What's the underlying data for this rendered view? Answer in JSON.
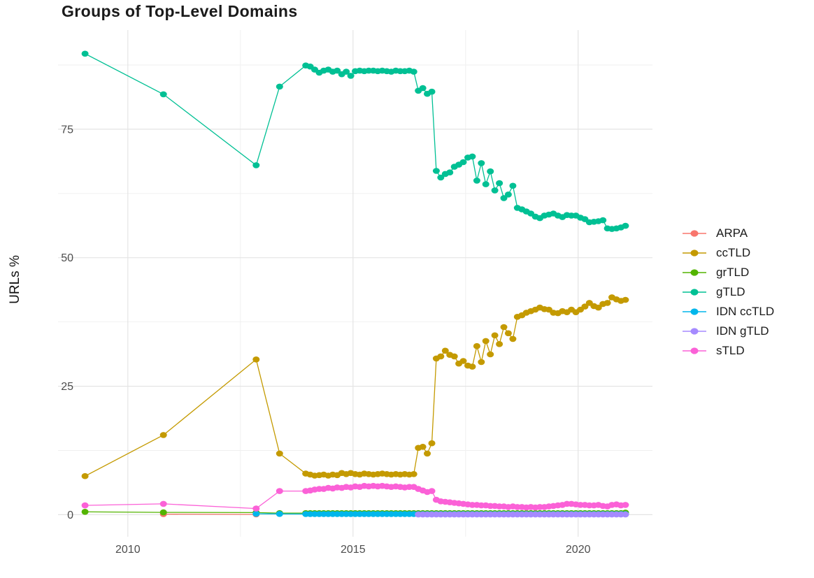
{
  "chart_data": {
    "type": "line",
    "title": "Groups of Top-Level Domains",
    "xlabel": "",
    "ylabel": "URLs %",
    "xlim": [
      2008.45,
      2021.65
    ],
    "ylim": [
      -4.3,
      94.3
    ],
    "grid": {
      "major_color": "#e4e4e4",
      "minor_color": "#efefef",
      "grid_on": true
    },
    "legend_position": "right",
    "x_ticks": [
      {
        "value": 2010,
        "label": "2010"
      },
      {
        "value": 2015,
        "label": "2015"
      },
      {
        "value": 2020,
        "label": "2020"
      }
    ],
    "y_ticks": [
      {
        "value": 0,
        "label": "0"
      },
      {
        "value": 25,
        "label": "25"
      },
      {
        "value": 50,
        "label": "50"
      },
      {
        "value": 75,
        "label": "75"
      }
    ],
    "x_minor": [
      2012.5,
      2017.5
    ],
    "y_minor": [
      12.5,
      37.5,
      62.5,
      87.5
    ],
    "series": [
      {
        "name": "ARPA",
        "color": "#F8766D",
        "points": [
          [
            2010.79,
            0.1
          ],
          [
            2012.85,
            0.05
          ]
        ]
      },
      {
        "name": "ccTLD",
        "color": "#C49A00",
        "points": [
          [
            2009.05,
            7.5
          ],
          [
            2010.79,
            15.5
          ],
          [
            2012.85,
            30.2
          ],
          [
            2013.37,
            11.9
          ],
          {
            "x0": 2013.95,
            "step": 0.1,
            "ys": [
              8.0,
              7.8,
              7.6,
              7.7,
              7.8,
              7.6,
              7.8,
              7.7,
              8.1,
              7.9,
              8.1,
              7.9,
              7.8,
              8.0,
              7.9,
              7.8,
              7.9,
              8.0,
              7.9,
              7.8,
              7.9,
              7.8,
              7.9,
              7.8,
              7.9
            ]
          },
          {
            "x0": 2016.45,
            "step": 0.1,
            "ys": [
              13.0,
              13.2,
              11.9,
              13.9
            ]
          },
          {
            "x0": 2016.85,
            "step": 0.1,
            "ys": [
              30.4,
              30.8,
              31.9,
              31.1,
              30.8,
              29.4,
              29.9,
              29.0,
              28.8,
              32.8,
              29.7,
              33.8,
              31.2,
              34.9,
              33.2,
              36.5,
              35.3,
              34.2,
              38.5,
              38.8,
              39.3,
              39.6,
              39.9,
              40.3,
              40.0,
              39.9,
              39.3,
              39.2,
              39.6,
              39.4,
              39.9,
              39.4,
              39.9,
              40.5,
              41.2,
              40.6,
              40.3,
              41.0,
              41.2,
              42.3,
              41.9,
              41.6,
              41.8
            ]
          }
        ]
      },
      {
        "name": "grTLD",
        "color": "#53B400",
        "points": [
          [
            2009.05,
            0.55
          ],
          [
            2010.79,
            0.45
          ],
          [
            2012.85,
            0.4
          ],
          [
            2013.37,
            0.3
          ],
          {
            "x0": 2013.95,
            "x1": 2020.95,
            "step": 0.1,
            "y": 0.3
          },
          [
            2021.05,
            0.4
          ]
        ]
      },
      {
        "name": "gTLD",
        "color": "#00C094",
        "points": [
          [
            2009.05,
            89.7
          ],
          [
            2010.79,
            81.8
          ],
          [
            2012.85,
            68.0
          ],
          [
            2013.37,
            83.3
          ],
          {
            "x0": 2013.95,
            "step": 0.1,
            "ys": [
              87.4,
              87.2,
              86.6,
              86.0,
              86.4,
              86.6,
              86.2,
              86.4,
              85.7,
              86.2,
              85.4,
              86.3,
              86.4,
              86.3,
              86.4,
              86.4,
              86.3,
              86.4,
              86.3,
              86.2,
              86.4,
              86.3,
              86.3,
              86.4,
              86.2
            ]
          },
          {
            "x0": 2016.45,
            "step": 0.1,
            "ys": [
              82.5,
              83.0,
              81.9,
              82.3
            ]
          },
          {
            "x0": 2016.85,
            "step": 0.1,
            "ys": [
              66.9,
              65.6,
              66.3,
              66.6,
              67.7,
              68.1,
              68.6,
              69.5,
              69.7,
              65.0,
              68.4,
              64.3,
              66.8,
              63.1,
              64.5,
              61.6,
              62.3,
              64.0,
              59.7,
              59.4,
              59.0,
              58.6,
              58.0,
              57.7,
              58.2,
              58.4,
              58.6,
              58.2,
              57.9,
              58.3,
              58.2,
              58.2,
              57.8,
              57.5,
              56.9,
              57.0,
              57.1,
              57.3,
              55.7,
              55.6,
              55.7,
              55.9,
              56.2
            ]
          }
        ]
      },
      {
        "name": "IDN ccTLD",
        "color": "#00B6EB",
        "points": [
          [
            2012.85,
            0.18
          ],
          [
            2013.37,
            0.15
          ],
          {
            "x0": 2013.95,
            "x1": 2021.05,
            "step": 0.1,
            "y": 0.12
          }
        ]
      },
      {
        "name": "IDN gTLD",
        "color": "#A58AFF",
        "points": [
          {
            "x0": 2016.45,
            "x1": 2021.05,
            "step": 0.1,
            "y": 0.04
          }
        ]
      },
      {
        "name": "sTLD",
        "color": "#FB61D7",
        "points": [
          [
            2009.05,
            1.8
          ],
          [
            2010.79,
            2.1
          ],
          [
            2012.85,
            1.2
          ],
          [
            2013.37,
            4.6
          ],
          {
            "x0": 2013.95,
            "step": 0.1,
            "ys": [
              4.6,
              4.7,
              4.9,
              5.0,
              5.0,
              5.2,
              5.1,
              5.3,
              5.2,
              5.4,
              5.3,
              5.5,
              5.4,
              5.6,
              5.5,
              5.6,
              5.5,
              5.6,
              5.5,
              5.4,
              5.5,
              5.4,
              5.3,
              5.4,
              5.4
            ]
          },
          {
            "x0": 2016.45,
            "step": 0.1,
            "ys": [
              5.0,
              4.7,
              4.4,
              4.6
            ]
          },
          {
            "x0": 2016.85,
            "step": 0.1,
            "ys": [
              2.9,
              2.6,
              2.5,
              2.4,
              2.3,
              2.2,
              2.1,
              2.0,
              1.9,
              1.9,
              1.8,
              1.8,
              1.7,
              1.7,
              1.6,
              1.6,
              1.5,
              1.6,
              1.5,
              1.5,
              1.4,
              1.5,
              1.4,
              1.5,
              1.5,
              1.6,
              1.7,
              1.8,
              1.9,
              2.1,
              2.1,
              2.0,
              1.9,
              1.9,
              1.8,
              1.8,
              1.9,
              1.7,
              1.6,
              1.9,
              2.0,
              1.8,
              1.9
            ]
          }
        ]
      }
    ]
  }
}
